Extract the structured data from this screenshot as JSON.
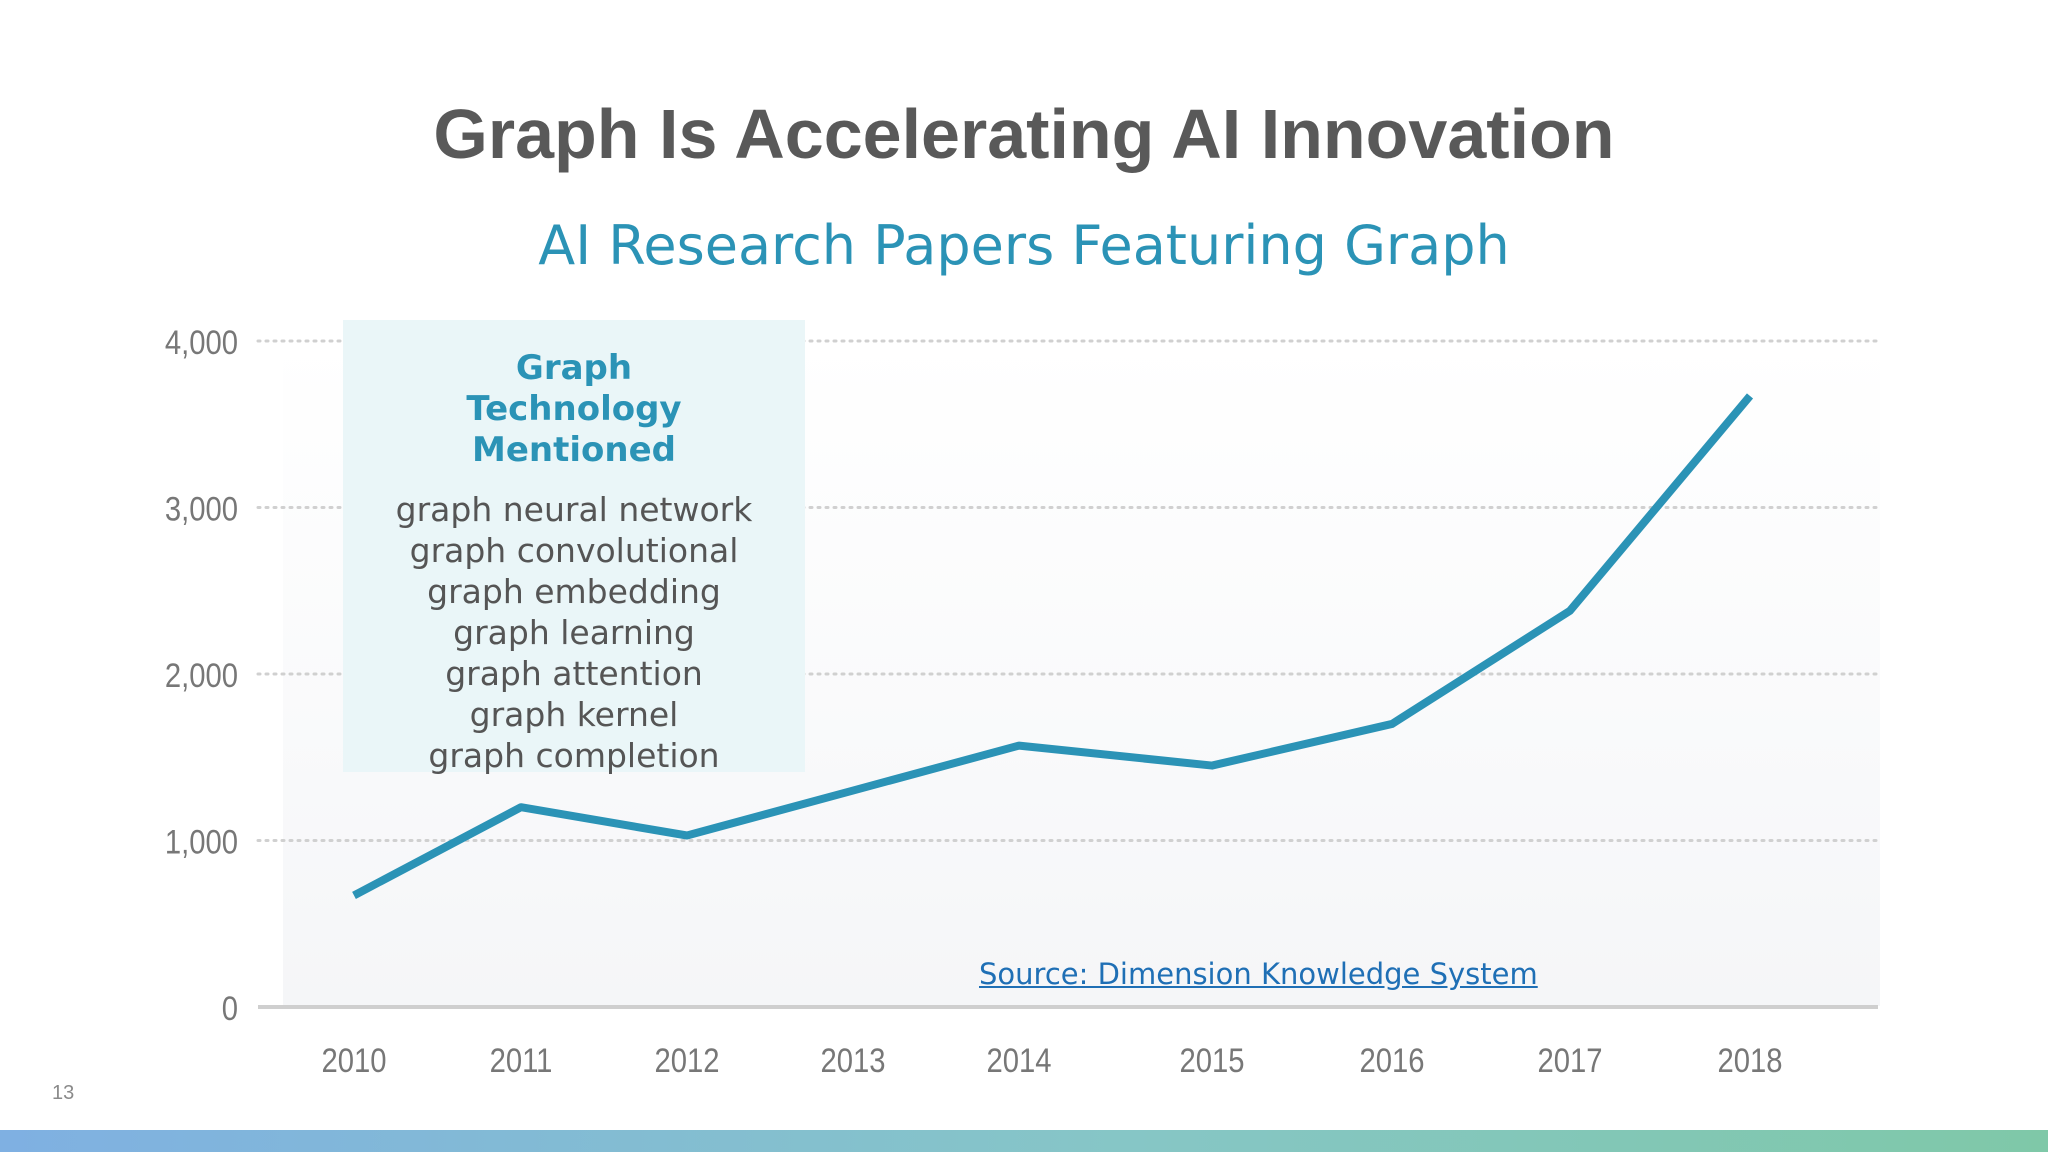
{
  "slide": {
    "title": "Graph Is Accelerating AI Innovation",
    "page_number": "13",
    "source": "Source: Dimension Knowledge System"
  },
  "legend": {
    "heading": "Graph Technology Mentioned",
    "items": [
      "graph neural network",
      "graph convolutional",
      "graph embedding",
      "graph learning",
      "graph attention",
      "graph kernel",
      "graph completion"
    ]
  },
  "colors": {
    "title": "#595959",
    "accent": "#2b93b6",
    "line": "#2b93b6",
    "legend_bg": "#eaf6f8",
    "link": "#1f6fb5",
    "gridline": "#d0d0d0",
    "axis": "#cfcfcf",
    "tick_label": "#777777"
  },
  "chart_data": {
    "type": "line",
    "title": "AI Research Papers Featuring Graph",
    "xlabel": "",
    "ylabel": "",
    "categories": [
      "2010",
      "2011",
      "2012",
      "2013",
      "2014",
      "2015",
      "2016",
      "2017",
      "2018"
    ],
    "series": [
      {
        "values": [
          670,
          1200,
          1030,
          1300,
          1570,
          1450,
          1700,
          2380,
          3670
        ]
      }
    ],
    "yticks": [
      0,
      1000,
      2000,
      3000,
      4000
    ],
    "ytick_labels": [
      "0",
      "1,000",
      "2,000",
      "3,000",
      "4,000"
    ],
    "ylim": [
      0,
      4000
    ],
    "grid": true,
    "legend_position": "top-left"
  }
}
